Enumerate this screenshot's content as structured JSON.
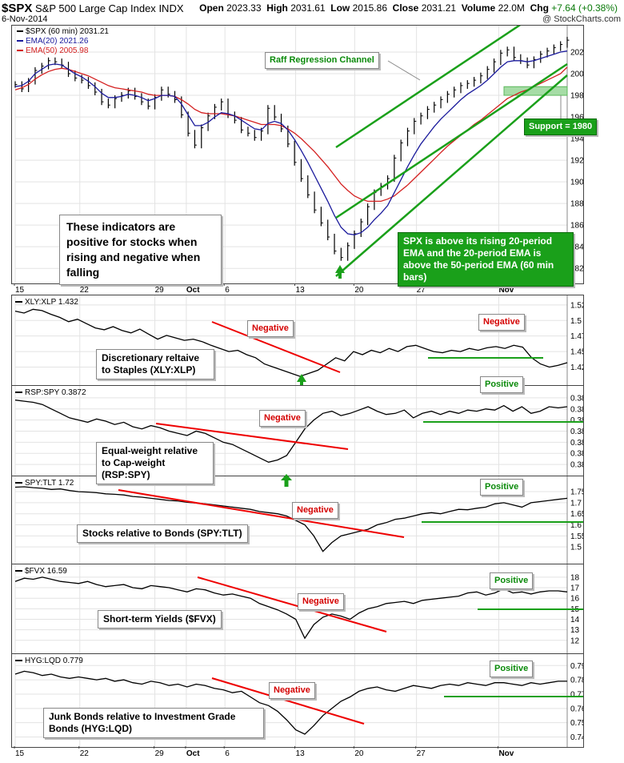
{
  "header": {
    "symbol": "$SPX",
    "name": "S&P 500 Large Cap Index",
    "exchange": "INDX",
    "date": "6-Nov-2014",
    "watermark": "@ StockCharts.com",
    "open_label": "Open",
    "open": "2023.33",
    "high_label": "High",
    "high": "2031.61",
    "low_label": "Low",
    "low": "2015.86",
    "close_label": "Close",
    "close": "2031.21",
    "volume_label": "Volume",
    "volume": "22.0M",
    "chg_label": "Chg",
    "chg": "+7.64 (+0.38%)"
  },
  "colors": {
    "price": "#000000",
    "ema20": "#1a1a9c",
    "ema50": "#d42020",
    "trend_red": "#ee0000",
    "trend_green": "#1aa01a",
    "support_fill": "#a6dca6"
  },
  "annotations": {
    "raff": "Raff Regression Channel",
    "support": "Support = 1980",
    "indicators": "These indicators are positive for stocks when rising and negative when falling",
    "spx_above": "SPX is above its rising 20-period EMA and the 20-period EMA is above the 50-period EMA (60 min bars)",
    "negative": "Negative",
    "positive": "Positive"
  },
  "panel_labels": {
    "xly": "Discretionary reltaive to Staples (XLY:XLP)",
    "rsp": "Equal-weight relative to Cap-weight (RSP:SPY)",
    "tlt": "Stocks relative to Bonds (SPY:TLT)",
    "fvx": "Short-term Yields ($FVX)",
    "hyg": "Junk Bonds relative to Investment Grade Bonds (HYG:LQD)"
  },
  "chart_data": [
    {
      "type": "line",
      "id": "spx",
      "legend": [
        "$SPX (60 min) 2031.21",
        "EMA(20) 2021.26",
        "EMA(50) 2005.98"
      ],
      "x_ticks": [
        "15",
        "22",
        "29",
        "Oct",
        "6",
        "13",
        "20",
        "27",
        "Nov"
      ],
      "y_ticks": [
        1820,
        1840,
        1860,
        1880,
        1900,
        1920,
        1940,
        1960,
        1980,
        2000,
        2020
      ],
      "ylim": [
        1812,
        2040
      ],
      "series": [
        {
          "name": "$SPX",
          "values": [
            1990,
            1986,
            1993,
            2003,
            2007,
            2012,
            2011,
            2008,
            2000,
            1996,
            1994,
            1989,
            1983,
            1974,
            1971,
            1977,
            1980,
            1984,
            1979,
            1974,
            1970,
            1978,
            1985,
            1981,
            1976,
            1962,
            1945,
            1934,
            1950,
            1961,
            1969,
            1974,
            1962,
            1957,
            1948,
            1945,
            1941,
            1947,
            1968,
            1960,
            1949,
            1935,
            1918,
            1903,
            1888,
            1874,
            1862,
            1849,
            1836,
            1830,
            1841,
            1852,
            1863,
            1877,
            1890,
            1896,
            1903,
            1922,
            1936,
            1947,
            1956,
            1961,
            1967,
            1971,
            1976,
            1981,
            1985,
            1989,
            1991,
            1994,
            1998,
            2004,
            2011,
            2019,
            2022,
            2015,
            2012,
            2008,
            2013,
            2018,
            2021,
            2024,
            2027,
            2031
          ]
        },
        {
          "name": "EMA(20)",
          "values": [
            1988,
            1989,
            1993,
            2000,
            2004,
            2008,
            2009,
            2008,
            2004,
            2000,
            1997,
            1993,
            1988,
            1982,
            1978,
            1978,
            1979,
            1981,
            1980,
            1978,
            1975,
            1977,
            1980,
            1980,
            1979,
            1972,
            1962,
            1952,
            1952,
            1955,
            1960,
            1964,
            1963,
            1961,
            1957,
            1953,
            1949,
            1948,
            1954,
            1956,
            1954,
            1948,
            1939,
            1929,
            1918,
            1906,
            1894,
            1882,
            1869,
            1858,
            1852,
            1851,
            1853,
            1858,
            1865,
            1871,
            1878,
            1890,
            1902,
            1914,
            1925,
            1935,
            1943,
            1951,
            1958,
            1964,
            1970,
            1976,
            1981,
            1985,
            1989,
            1994,
            2000,
            2006,
            2011,
            2012,
            2012,
            2011,
            2012,
            2014,
            2016,
            2018,
            2020,
            2021
          ]
        },
        {
          "name": "EMA(50)",
          "values": [
            1985,
            1987,
            1990,
            1995,
            1999,
            2002,
            2004,
            2005,
            2004,
            2002,
            2000,
            1998,
            1995,
            1992,
            1989,
            1987,
            1986,
            1985,
            1984,
            1983,
            1981,
            1980,
            1980,
            1980,
            1979,
            1976,
            1972,
            1967,
            1964,
            1963,
            1963,
            1963,
            1962,
            1961,
            1959,
            1957,
            1955,
            1953,
            1953,
            1953,
            1952,
            1949,
            1945,
            1940,
            1934,
            1928,
            1921,
            1914,
            1906,
            1898,
            1892,
            1887,
            1884,
            1882,
            1882,
            1882,
            1884,
            1887,
            1892,
            1897,
            1903,
            1909,
            1915,
            1921,
            1927,
            1933,
            1938,
            1943,
            1948,
            1953,
            1957,
            1962,
            1967,
            1972,
            1977,
            1980,
            1983,
            1985,
            1988,
            1991,
            1994,
            1997,
            2000,
            2006
          ]
        }
      ]
    },
    {
      "type": "line",
      "id": "xly",
      "legend": "XLY:XLP 1.432",
      "y_ticks": [
        1.425,
        1.45,
        1.475,
        1.5,
        1.525
      ],
      "ylim": [
        1.405,
        1.53
      ],
      "series": [
        {
          "name": "XLY:XLP",
          "values": [
            1.515,
            1.512,
            1.518,
            1.516,
            1.51,
            1.505,
            1.498,
            1.502,
            1.495,
            1.488,
            1.485,
            1.49,
            1.484,
            1.48,
            1.486,
            1.478,
            1.47,
            1.476,
            1.472,
            1.468,
            1.47,
            1.466,
            1.46,
            1.455,
            1.45,
            1.452,
            1.445,
            1.44,
            1.43,
            1.425,
            1.42,
            1.415,
            1.41,
            1.415,
            1.42,
            1.43,
            1.44,
            1.435,
            1.45,
            1.445,
            1.452,
            1.448,
            1.455,
            1.45,
            1.458,
            1.46,
            1.455,
            1.45,
            1.448,
            1.452,
            1.45,
            1.455,
            1.452,
            1.456,
            1.458,
            1.455,
            1.46,
            1.457,
            1.44,
            1.43,
            1.425,
            1.428,
            1.432
          ]
        }
      ]
    },
    {
      "type": "line",
      "id": "rsp",
      "legend": "RSP:SPY 0.3872",
      "y_ticks": [
        0.382,
        0.383,
        0.384,
        0.385,
        0.386,
        0.387,
        0.388
      ],
      "ylim": [
        0.3815,
        0.3885
      ],
      "series": [
        {
          "name": "RSP:SPY",
          "values": [
            0.3878,
            0.3877,
            0.3876,
            0.3874,
            0.387,
            0.3866,
            0.3862,
            0.386,
            0.3858,
            0.3861,
            0.3859,
            0.3856,
            0.3858,
            0.3854,
            0.3852,
            0.3855,
            0.3853,
            0.385,
            0.3848,
            0.3846,
            0.385,
            0.3848,
            0.3844,
            0.384,
            0.3838,
            0.3834,
            0.383,
            0.3826,
            0.3822,
            0.3824,
            0.3828,
            0.384,
            0.3852,
            0.386,
            0.3866,
            0.3868,
            0.3864,
            0.3866,
            0.3869,
            0.3872,
            0.3868,
            0.3865,
            0.3866,
            0.3869,
            0.3862,
            0.3866,
            0.3868,
            0.3865,
            0.3868,
            0.3866,
            0.3869,
            0.3868,
            0.387,
            0.3869,
            0.3873,
            0.3868,
            0.3872,
            0.3866,
            0.3868,
            0.3872,
            0.3871,
            0.3872
          ]
        }
      ]
    },
    {
      "type": "line",
      "id": "tlt",
      "legend": "SPY:TLT 1.72",
      "y_ticks": [
        1.5,
        1.55,
        1.6,
        1.65,
        1.7,
        1.75
      ],
      "ylim": [
        1.45,
        1.79
      ],
      "series": [
        {
          "name": "SPY:TLT",
          "values": [
            1.77,
            1.772,
            1.768,
            1.765,
            1.76,
            1.762,
            1.755,
            1.75,
            1.748,
            1.745,
            1.74,
            1.738,
            1.735,
            1.728,
            1.725,
            1.72,
            1.715,
            1.71,
            1.708,
            1.702,
            1.698,
            1.695,
            1.69,
            1.685,
            1.68,
            1.675,
            1.67,
            1.66,
            1.655,
            1.65,
            1.64,
            1.62,
            1.6,
            1.55,
            1.48,
            1.52,
            1.55,
            1.56,
            1.57,
            1.58,
            1.6,
            1.61,
            1.625,
            1.63,
            1.64,
            1.65,
            1.655,
            1.65,
            1.66,
            1.67,
            1.668,
            1.675,
            1.68,
            1.695,
            1.7,
            1.69,
            1.68,
            1.7,
            1.705,
            1.71,
            1.715,
            1.72
          ]
        }
      ]
    },
    {
      "type": "line",
      "id": "fvx",
      "legend": "$FVX 16.59",
      "y_ticks": [
        12,
        13,
        14,
        15,
        16,
        17,
        18
      ],
      "ylim": [
        11.3,
        18.6
      ],
      "series": [
        {
          "name": "$FVX",
          "values": [
            17.6,
            17.9,
            17.8,
            18.0,
            17.8,
            17.6,
            17.5,
            17.4,
            17.6,
            17.3,
            17.1,
            17.2,
            17.3,
            17.0,
            16.9,
            17.2,
            17.1,
            17.0,
            16.8,
            16.6,
            16.9,
            16.8,
            16.5,
            16.3,
            16.4,
            16.2,
            16.0,
            15.5,
            15.2,
            14.9,
            14.5,
            14.0,
            12.2,
            13.5,
            14.2,
            14.5,
            14.3,
            14.0,
            14.6,
            15.0,
            15.2,
            15.5,
            15.6,
            15.7,
            15.5,
            15.8,
            15.9,
            16.0,
            16.1,
            16.2,
            16.5,
            16.6,
            16.3,
            16.5,
            16.9,
            16.5,
            16.6,
            16.4,
            16.6,
            16.7,
            16.7,
            16.6
          ]
        }
      ]
    },
    {
      "type": "line",
      "id": "hyg",
      "legend": "HYG:LQD 0.779",
      "y_ticks": [
        0.74,
        0.75,
        0.76,
        0.77,
        0.78,
        0.79
      ],
      "ylim": [
        0.7375,
        0.7935
      ],
      "series": [
        {
          "name": "HYG:LQD",
          "values": [
            0.784,
            0.786,
            0.785,
            0.783,
            0.784,
            0.782,
            0.781,
            0.782,
            0.781,
            0.78,
            0.781,
            0.779,
            0.78,
            0.778,
            0.777,
            0.779,
            0.778,
            0.776,
            0.777,
            0.775,
            0.777,
            0.776,
            0.774,
            0.773,
            0.771,
            0.772,
            0.768,
            0.764,
            0.762,
            0.758,
            0.752,
            0.745,
            0.742,
            0.748,
            0.755,
            0.76,
            0.765,
            0.768,
            0.772,
            0.774,
            0.775,
            0.773,
            0.772,
            0.774,
            0.776,
            0.775,
            0.774,
            0.776,
            0.777,
            0.776,
            0.778,
            0.777,
            0.776,
            0.778,
            0.778,
            0.777,
            0.776,
            0.778,
            0.777,
            0.778,
            0.779,
            0.779
          ]
        }
      ]
    }
  ]
}
